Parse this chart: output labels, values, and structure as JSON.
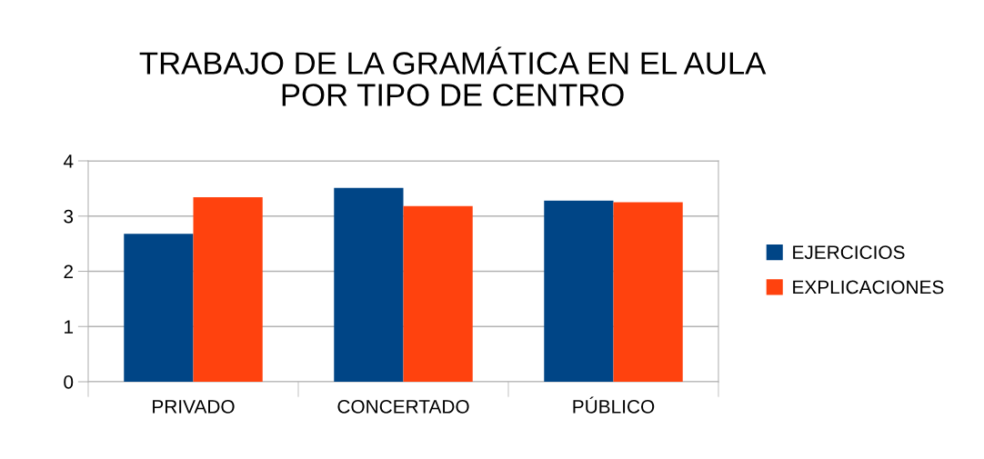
{
  "chart_data": {
    "type": "bar",
    "title": "TRABAJO DE LA GRAMÁTICA EN EL AULA\nPOR TIPO DE CENTRO",
    "categories": [
      "PRIVADO",
      "CONCERTADO",
      "PÚBLICO"
    ],
    "series": [
      {
        "name": "EJERCICIOS",
        "color": "#004586",
        "values": [
          2.68,
          3.51,
          3.28
        ]
      },
      {
        "name": "EXPLICACIONES",
        "color": "#ff420e",
        "values": [
          3.34,
          3.18,
          3.25
        ]
      }
    ],
    "ylim": [
      0,
      4
    ],
    "yticks": [
      0,
      1,
      2,
      3,
      4
    ],
    "grid": "y",
    "legend": "right"
  }
}
